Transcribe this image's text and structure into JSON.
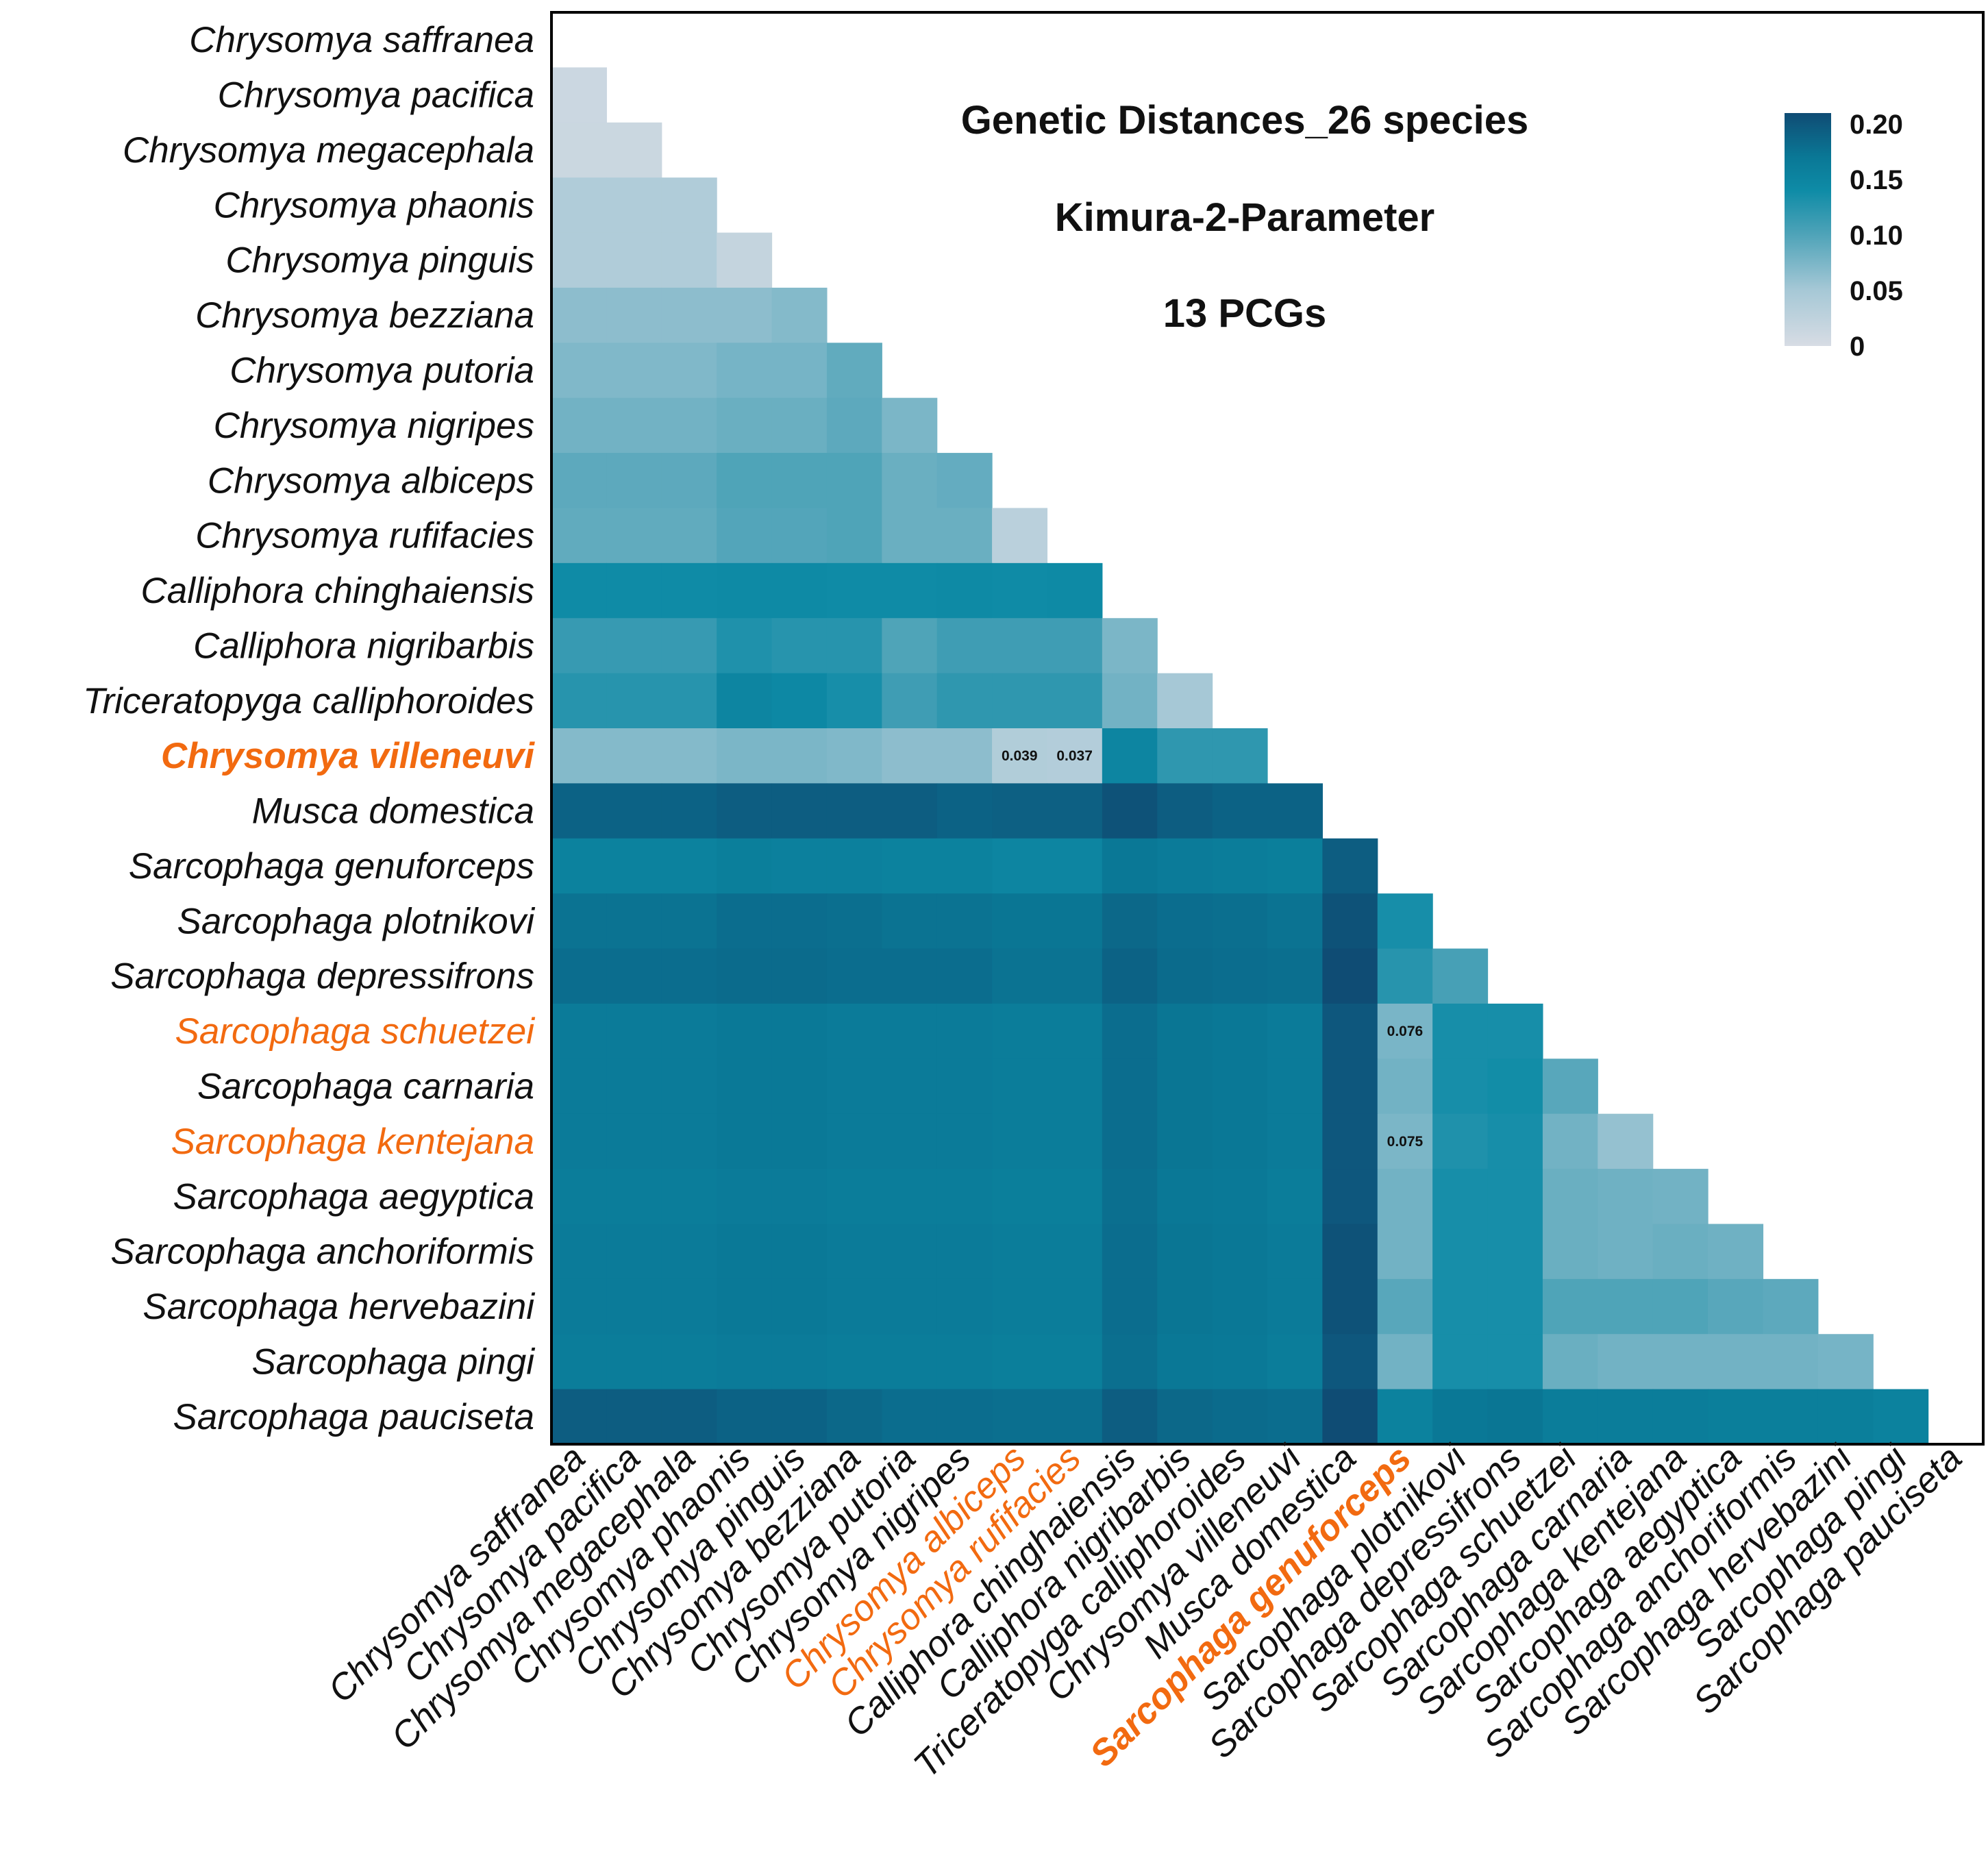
{
  "chart_data": {
    "type": "heatmap",
    "title_lines": [
      "Genetic Distances_26 species",
      "Kimura-2-Parameter",
      "13 PCGs"
    ],
    "species": [
      "Chrysomya saffranea",
      "Chrysomya pacifica",
      "Chrysomya megacephala",
      "Chrysomya phaonis",
      "Chrysomya pinguis",
      "Chrysomya bezziana",
      "Chrysomya putoria",
      "Chrysomya nigripes",
      "Chrysomya albiceps",
      "Chrysomya rufifacies",
      "Calliphora chinghaiensis",
      "Calliphora nigribarbis",
      "Triceratopyga calliphoroides",
      "Chrysomya villeneuvi",
      "Musca domestica",
      "Sarcophaga genuforceps",
      "Sarcophaga plotnikovi",
      "Sarcophaga depressifrons",
      "Sarcophaga schuetzei",
      "Sarcophaga carnaria",
      "Sarcophaga kentejana",
      "Sarcophaga aegyptica",
      "Sarcophaga anchoriformis",
      "Sarcophaga hervebazini",
      "Sarcophaga pingi",
      "Sarcophaga pauciseta"
    ],
    "row_highlights": {
      "Chrysomya villeneuvi": "orange-bold",
      "Sarcophaga schuetzei": "orange",
      "Sarcophaga kentejana": "orange"
    },
    "col_highlights": {
      "Chrysomya albiceps": "orange",
      "Chrysomya rufifacies": "orange",
      "Sarcophaga genuforceps": "orange-bold"
    },
    "colorbar": {
      "min": 0,
      "max": 0.21,
      "ticks": [
        "0",
        "0.05",
        "0.10",
        "0.15",
        "0.20"
      ],
      "tick_values": [
        0,
        0.05,
        0.1,
        0.15,
        0.2
      ],
      "colors": [
        "#d7dce4",
        "#a6c8d6",
        "#4ea3b8",
        "#0e8ba6",
        "#0a7896",
        "#0f4c74"
      ]
    },
    "values": [
      [],
      [
        0.012
      ],
      [
        0.013,
        0.013
      ],
      [
        0.04,
        0.04,
        0.04
      ],
      [
        0.04,
        0.04,
        0.04,
        0.02
      ],
      [
        0.065,
        0.065,
        0.065,
        0.065,
        0.07
      ],
      [
        0.072,
        0.072,
        0.072,
        0.078,
        0.078,
        0.09
      ],
      [
        0.08,
        0.08,
        0.08,
        0.085,
        0.085,
        0.092,
        0.075
      ],
      [
        0.092,
        0.092,
        0.092,
        0.1,
        0.1,
        0.1,
        0.085,
        0.088
      ],
      [
        0.09,
        0.09,
        0.09,
        0.098,
        0.098,
        0.1,
        0.085,
        0.085,
        0.03
      ],
      [
        0.14,
        0.14,
        0.14,
        0.142,
        0.142,
        0.14,
        0.14,
        0.142,
        0.14,
        0.142
      ],
      [
        0.115,
        0.115,
        0.115,
        0.13,
        0.125,
        0.125,
        0.1,
        0.11,
        0.11,
        0.11,
        0.075
      ],
      [
        0.125,
        0.125,
        0.125,
        0.15,
        0.145,
        0.135,
        0.11,
        0.12,
        0.12,
        0.12,
        0.08,
        0.05
      ],
      [
        0.07,
        0.07,
        0.07,
        0.075,
        0.075,
        0.072,
        0.065,
        0.065,
        0.039,
        0.037,
        0.15,
        0.12,
        0.12
      ],
      [
        0.19,
        0.19,
        0.19,
        0.195,
        0.195,
        0.195,
        0.195,
        0.19,
        0.192,
        0.192,
        0.205,
        0.195,
        0.19,
        0.19
      ],
      [
        0.155,
        0.155,
        0.155,
        0.16,
        0.158,
        0.158,
        0.155,
        0.155,
        0.15,
        0.15,
        0.17,
        0.165,
        0.162,
        0.16,
        0.195
      ],
      [
        0.175,
        0.175,
        0.175,
        0.18,
        0.18,
        0.178,
        0.175,
        0.175,
        0.172,
        0.172,
        0.185,
        0.18,
        0.178,
        0.175,
        0.205,
        0.135
      ],
      [
        0.18,
        0.18,
        0.18,
        0.182,
        0.182,
        0.18,
        0.18,
        0.18,
        0.175,
        0.175,
        0.19,
        0.182,
        0.18,
        0.178,
        0.21,
        0.125,
        0.105
      ],
      [
        0.165,
        0.165,
        0.165,
        0.168,
        0.168,
        0.165,
        0.165,
        0.165,
        0.162,
        0.162,
        0.18,
        0.172,
        0.17,
        0.165,
        0.2,
        0.076,
        0.135,
        0.135
      ],
      [
        0.165,
        0.165,
        0.165,
        0.168,
        0.168,
        0.165,
        0.165,
        0.165,
        0.162,
        0.162,
        0.18,
        0.172,
        0.17,
        0.165,
        0.2,
        0.08,
        0.135,
        0.138,
        0.095
      ],
      [
        0.165,
        0.165,
        0.165,
        0.168,
        0.168,
        0.165,
        0.165,
        0.165,
        0.162,
        0.162,
        0.18,
        0.172,
        0.17,
        0.165,
        0.2,
        0.075,
        0.13,
        0.135,
        0.08,
        0.06
      ],
      [
        0.162,
        0.162,
        0.162,
        0.165,
        0.165,
        0.162,
        0.162,
        0.162,
        0.16,
        0.16,
        0.178,
        0.17,
        0.168,
        0.162,
        0.2,
        0.08,
        0.135,
        0.135,
        0.085,
        0.082,
        0.08
      ],
      [
        0.165,
        0.165,
        0.165,
        0.168,
        0.168,
        0.165,
        0.165,
        0.165,
        0.162,
        0.162,
        0.18,
        0.172,
        0.17,
        0.165,
        0.205,
        0.08,
        0.135,
        0.135,
        0.085,
        0.082,
        0.085,
        0.082
      ],
      [
        0.165,
        0.165,
        0.165,
        0.168,
        0.168,
        0.165,
        0.165,
        0.165,
        0.162,
        0.162,
        0.18,
        0.172,
        0.17,
        0.165,
        0.205,
        0.095,
        0.135,
        0.135,
        0.1,
        0.1,
        0.1,
        0.095,
        0.092
      ],
      [
        0.162,
        0.162,
        0.162,
        0.165,
        0.165,
        0.162,
        0.162,
        0.162,
        0.16,
        0.16,
        0.178,
        0.17,
        0.168,
        0.162,
        0.2,
        0.08,
        0.135,
        0.135,
        0.085,
        0.08,
        0.08,
        0.08,
        0.08,
        0.078
      ],
      [
        0.195,
        0.195,
        0.195,
        0.19,
        0.19,
        0.185,
        0.18,
        0.18,
        0.178,
        0.178,
        0.195,
        0.185,
        0.182,
        0.18,
        0.215,
        0.155,
        0.17,
        0.172,
        0.162,
        0.162,
        0.162,
        0.16,
        0.16,
        0.16,
        0.155
      ]
    ],
    "cell_labels": [
      {
        "row": 13,
        "col": 8,
        "text": "0.039"
      },
      {
        "row": 13,
        "col": 9,
        "text": "0.037"
      },
      {
        "row": 18,
        "col": 15,
        "text": "0.076"
      },
      {
        "row": 20,
        "col": 15,
        "text": "0.075"
      }
    ]
  }
}
